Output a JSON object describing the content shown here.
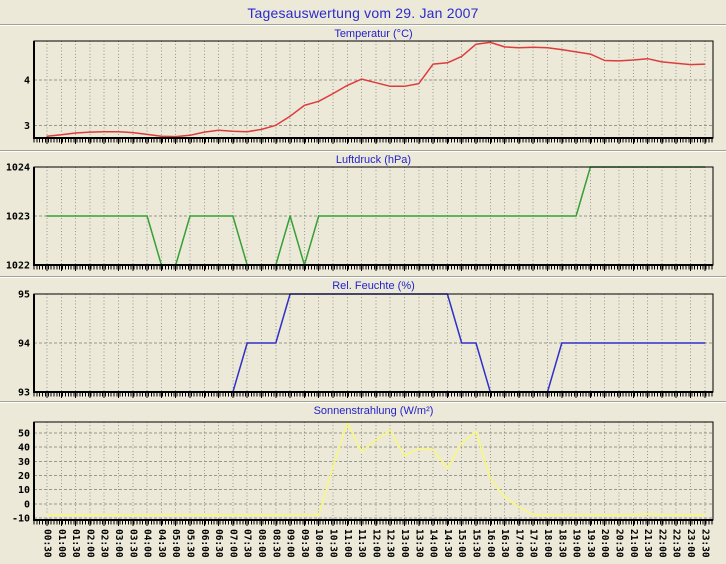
{
  "page_title": "Tagesauswertung vom 29. Jan 2007",
  "colors": {
    "background": "#ECE9D8",
    "title_text": "#2B2BCC",
    "chart_title_text": "#2222CC",
    "grid": "#98988C",
    "frame": "#000000",
    "axis_text": "#000000",
    "temperatur_line": "#DC3C3C",
    "luftdruck_line": "#35A035",
    "feuchte_line": "#3030C8",
    "sonnenstrahlung_line": "#F8F87E"
  },
  "chart_data": {
    "type": "line",
    "x_tick_interval": "30min",
    "categories": [
      "00:30",
      "01:00",
      "01:30",
      "02:00",
      "02:30",
      "03:00",
      "03:30",
      "04:00",
      "04:30",
      "05:00",
      "05:30",
      "06:00",
      "06:30",
      "07:00",
      "07:30",
      "08:00",
      "08:30",
      "09:00",
      "09:30",
      "10:00",
      "10:30",
      "11:00",
      "11:30",
      "12:00",
      "12:30",
      "13:00",
      "13:30",
      "14:00",
      "14:30",
      "15:00",
      "15:30",
      "16:00",
      "16:30",
      "17:00",
      "17:30",
      "18:00",
      "18:30",
      "19:00",
      "19:30",
      "20:00",
      "20:30",
      "21:00",
      "21:30",
      "22:00",
      "22:30",
      "23:00",
      "23:30"
    ],
    "charts": [
      {
        "title": "Temperatur (°C)",
        "color": "#DC3C3C",
        "ylim": [
          2.72,
          4.86
        ],
        "gridlines": [
          3,
          4
        ],
        "yticks": [
          {
            "value": 4,
            "label": "4"
          },
          {
            "value": 3,
            "label": "3"
          }
        ],
        "values": [
          2.76,
          2.79,
          2.83,
          2.85,
          2.86,
          2.86,
          2.84,
          2.8,
          2.76,
          2.75,
          2.78,
          2.85,
          2.89,
          2.87,
          2.86,
          2.91,
          3.0,
          3.2,
          3.44,
          3.53,
          3.7,
          3.88,
          4.02,
          3.94,
          3.86,
          3.86,
          3.92,
          4.35,
          4.38,
          4.52,
          4.79,
          4.83,
          4.73,
          4.71,
          4.72,
          4.71,
          4.67,
          4.62,
          4.57,
          4.43,
          4.42,
          4.44,
          4.47,
          4.4,
          4.37,
          4.34,
          4.35
        ]
      },
      {
        "title": "Luftdruck (hPa)",
        "color": "#35A035",
        "ylim": [
          1022,
          1024
        ],
        "gridlines": [
          1023
        ],
        "yticks": [
          {
            "value": 1024,
            "label": "1024"
          },
          {
            "value": 1023,
            "label": "1023"
          },
          {
            "value": 1022,
            "label": "1022"
          }
        ],
        "values": [
          1023,
          1023,
          1023,
          1023,
          1023,
          1023,
          1023,
          1023,
          1022,
          1022,
          1023,
          1023,
          1023,
          1023,
          1022,
          1022,
          1022,
          1023,
          1022,
          1023,
          1023,
          1023,
          1023,
          1023,
          1023,
          1023,
          1023,
          1023,
          1023,
          1023,
          1023,
          1023,
          1023,
          1023,
          1023,
          1023,
          1023,
          1023,
          1024,
          1024,
          1024,
          1024,
          1024,
          1024,
          1024,
          1024,
          1024
        ]
      },
      {
        "title": "Rel. Feuchte (%)",
        "color": "#3030C8",
        "ylim": [
          93,
          95
        ],
        "gridlines": [
          94
        ],
        "yticks": [
          {
            "value": 95,
            "label": "95"
          },
          {
            "value": 94,
            "label": "94"
          },
          {
            "value": 93,
            "label": "93"
          }
        ],
        "values": [
          93,
          93,
          93,
          93,
          93,
          93,
          93,
          93,
          93,
          93,
          93,
          93,
          93,
          93,
          94,
          94,
          94,
          95,
          95,
          95,
          95,
          95,
          95,
          95,
          95,
          95,
          95,
          95,
          95,
          94,
          94,
          93,
          93,
          93,
          93,
          93,
          94,
          94,
          94,
          94,
          94,
          94,
          94,
          94,
          94,
          94,
          94
        ]
      },
      {
        "title": "Sonnenstrahlung (W/m²)",
        "color": "#F8F87E",
        "ylim": [
          -11.4,
          57.8
        ],
        "gridlines": [
          -10,
          0,
          10,
          20,
          30,
          40,
          50
        ],
        "yticks": [
          {
            "value": 50,
            "label": "50"
          },
          {
            "value": 40,
            "label": "40"
          },
          {
            "value": 30,
            "label": "30"
          },
          {
            "value": 20,
            "label": "20"
          },
          {
            "value": 10,
            "label": "10"
          },
          {
            "value": 0,
            "label": "0"
          },
          {
            "value": -10,
            "label": "-10"
          }
        ],
        "values": [
          -8,
          -8,
          -8,
          -8,
          -8,
          -8,
          -8,
          -8,
          -8,
          -8,
          -8,
          -8,
          -8,
          -8,
          -8,
          -8,
          -8,
          -8,
          -8,
          -8,
          26,
          57,
          37,
          45,
          52,
          34,
          39,
          38,
          25,
          43,
          51,
          18,
          5,
          -2,
          -8,
          -8,
          -8,
          -8,
          -8,
          -8,
          -8,
          -8,
          -7,
          -8,
          -8,
          -8,
          -8
        ]
      }
    ]
  }
}
